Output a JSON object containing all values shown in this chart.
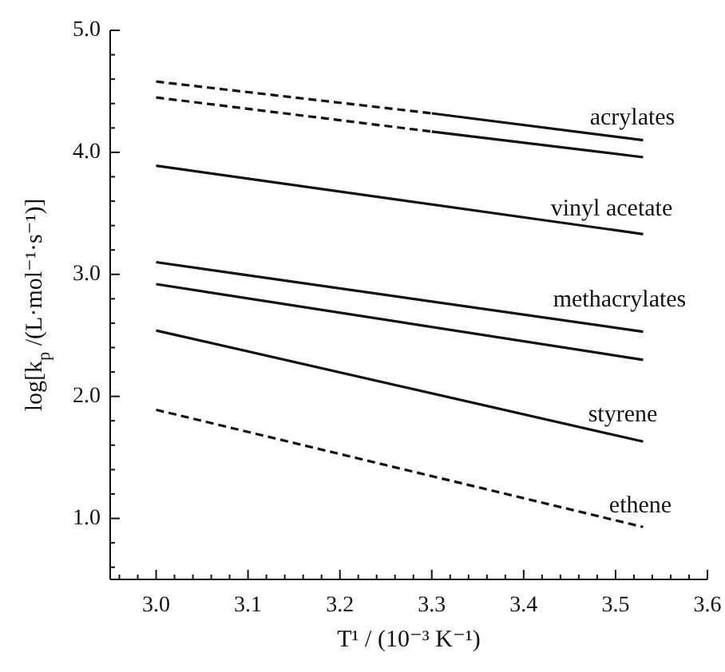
{
  "chart_data": {
    "type": "line",
    "xlabel": "T¹ / (10⁻³ K⁻¹)",
    "ylabel": "log[k$_{p}$ /(L·mol⁻¹·s⁻¹)]",
    "xlim": [
      2.95,
      3.6
    ],
    "xticks": [
      {
        "value": 2.96,
        "label": null
      },
      {
        "value": 2.98,
        "label": null
      },
      {
        "value": 3.0,
        "label": "3.0"
      },
      {
        "value": 3.02,
        "label": null
      },
      {
        "value": 3.04,
        "label": null
      },
      {
        "value": 3.06,
        "label": null
      },
      {
        "value": 3.08,
        "label": null
      },
      {
        "value": 3.1,
        "label": "3.1"
      },
      {
        "value": 3.12,
        "label": null
      },
      {
        "value": 3.14,
        "label": null
      },
      {
        "value": 3.16,
        "label": null
      },
      {
        "value": 3.18,
        "label": null
      },
      {
        "value": 3.2,
        "label": "3.2"
      },
      {
        "value": 3.22,
        "label": null
      },
      {
        "value": 3.24,
        "label": null
      },
      {
        "value": 3.26,
        "label": null
      },
      {
        "value": 3.28,
        "label": null
      },
      {
        "value": 3.3,
        "label": "3.3"
      },
      {
        "value": 3.32,
        "label": null
      },
      {
        "value": 3.34,
        "label": null
      },
      {
        "value": 3.36,
        "label": null
      },
      {
        "value": 3.38,
        "label": null
      },
      {
        "value": 3.4,
        "label": "3.4"
      },
      {
        "value": 3.42,
        "label": null
      },
      {
        "value": 3.44,
        "label": null
      },
      {
        "value": 3.46,
        "label": null
      },
      {
        "value": 3.48,
        "label": null
      },
      {
        "value": 3.5,
        "label": "3.5"
      },
      {
        "value": 3.52,
        "label": null
      },
      {
        "value": 3.54,
        "label": null
      },
      {
        "value": 3.56,
        "label": null
      },
      {
        "value": 3.58,
        "label": null
      },
      {
        "value": 3.6,
        "label": "3.6"
      }
    ],
    "ylim": [
      0.5,
      5.0
    ],
    "yticks": [
      {
        "value": 0.6,
        "label": null
      },
      {
        "value": 0.8,
        "label": null
      },
      {
        "value": 1.0,
        "label": "1.0"
      },
      {
        "value": 1.2,
        "label": null
      },
      {
        "value": 1.4,
        "label": null
      },
      {
        "value": 1.6,
        "label": null
      },
      {
        "value": 1.8,
        "label": null
      },
      {
        "value": 2.0,
        "label": "2.0"
      },
      {
        "value": 2.2,
        "label": null
      },
      {
        "value": 2.4,
        "label": null
      },
      {
        "value": 2.6,
        "label": null
      },
      {
        "value": 2.8,
        "label": null
      },
      {
        "value": 3.0,
        "label": "3.0"
      },
      {
        "value": 3.2,
        "label": null
      },
      {
        "value": 3.4,
        "label": null
      },
      {
        "value": 3.6,
        "label": null
      },
      {
        "value": 3.8,
        "label": null
      },
      {
        "value": 4.0,
        "label": "4.0"
      },
      {
        "value": 4.2,
        "label": null
      },
      {
        "value": 4.4,
        "label": null
      },
      {
        "value": 4.6,
        "label": null
      },
      {
        "value": 4.8,
        "label": null
      },
      {
        "value": 5.0,
        "label": "5.0"
      }
    ],
    "marker": "none",
    "series": [
      {
        "color": "#111111",
        "line_style": "dashed",
        "x": [
          3.0,
          3.3
        ],
        "values": [
          4.58,
          4.32
        ]
      },
      {
        "color": "#111111",
        "line_style": "solid",
        "x": [
          3.3,
          3.53
        ],
        "values": [
          4.32,
          4.1
        ]
      },
      {
        "color": "#111111",
        "line_style": "dashed",
        "x": [
          3.0,
          3.3
        ],
        "values": [
          4.45,
          4.17
        ]
      },
      {
        "color": "#111111",
        "line_style": "solid",
        "x": [
          3.3,
          3.53
        ],
        "values": [
          4.17,
          3.96
        ]
      },
      {
        "color": "#111111",
        "line_style": "solid",
        "x": [
          3.0,
          3.53
        ],
        "values": [
          3.89,
          3.33
        ]
      },
      {
        "color": "#111111",
        "line_style": "solid",
        "x": [
          3.0,
          3.53
        ],
        "values": [
          3.1,
          2.53
        ]
      },
      {
        "color": "#111111",
        "line_style": "solid",
        "x": [
          3.0,
          3.53
        ],
        "values": [
          2.92,
          2.3
        ]
      },
      {
        "color": "#111111",
        "line_style": "solid",
        "x": [
          3.0,
          3.53
        ],
        "values": [
          2.54,
          1.63
        ]
      },
      {
        "color": "#111111",
        "line_style": "dashed",
        "x": [
          3.0,
          3.53
        ],
        "values": [
          1.89,
          0.93
        ]
      }
    ],
    "annotations": [
      "acrylates",
      "vinyl acetate",
      "methacrylates",
      "styrene",
      "ethene"
    ]
  }
}
